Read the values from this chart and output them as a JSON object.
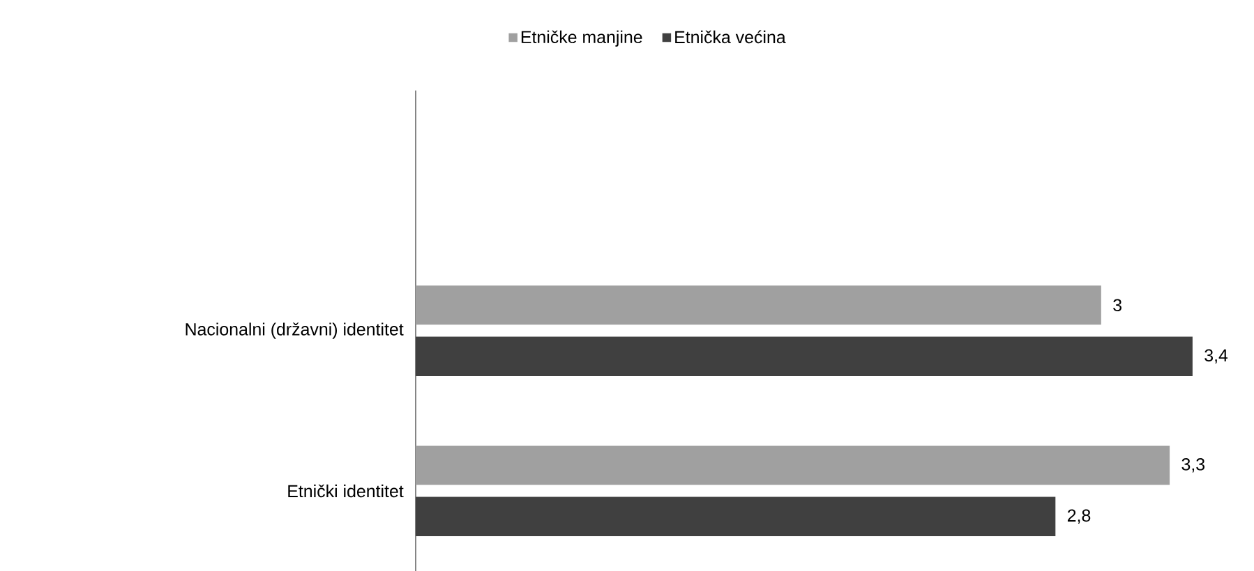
{
  "chart_data": {
    "type": "bar",
    "orientation": "horizontal",
    "categories": [
      null,
      "Nacionalni (državni) identitet",
      "Etnički identitet"
    ],
    "series": [
      {
        "name": "Etničke manjine",
        "color": "#a0a0a0",
        "values": [
          null,
          3,
          3.3
        ],
        "value_labels": [
          null,
          "3",
          "3,3"
        ]
      },
      {
        "name": "Etnička većina",
        "color": "#404040",
        "values": [
          null,
          3.4,
          2.8
        ],
        "value_labels": [
          null,
          "3,4",
          "2,8"
        ]
      }
    ],
    "tick_labels": "y",
    "legend": "top"
  }
}
